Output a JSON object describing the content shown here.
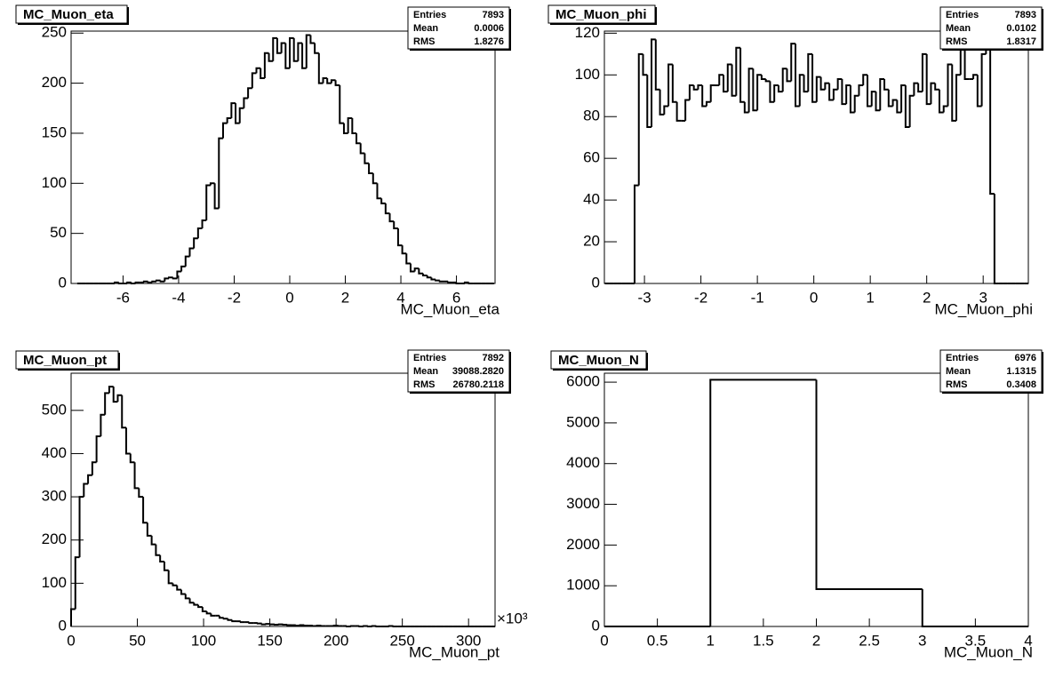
{
  "chart_data": [
    {
      "type": "histogram",
      "title": "MC_Muon_eta",
      "x_label": "MC_Muon_eta",
      "color": "#000000",
      "bins": [
        -7.65,
        -7.5,
        -7.35,
        -7.2,
        -7.05,
        -6.9,
        -6.75,
        -6.6,
        -6.45,
        -6.3,
        -6.15,
        -6,
        -5.85,
        -5.7,
        -5.55,
        -5.4,
        -5.25,
        -5.1,
        -4.95,
        -4.8,
        -4.65,
        -4.5,
        -4.35,
        -4.2,
        -4.05,
        -3.9,
        -3.75,
        -3.6,
        -3.45,
        -3.3,
        -3.15,
        -3,
        -2.85,
        -2.7,
        -2.55,
        -2.4,
        -2.25,
        -2.1,
        -1.95,
        -1.8,
        -1.65,
        -1.5,
        -1.35,
        -1.2,
        -1.05,
        -0.9,
        -0.75,
        -0.6,
        -0.45,
        -0.3,
        -0.15,
        0,
        0.15,
        0.3,
        0.45,
        0.6,
        0.75,
        0.9,
        1.05,
        1.2,
        1.35,
        1.5,
        1.65,
        1.8,
        1.95,
        2.1,
        2.25,
        2.4,
        2.55,
        2.7,
        2.85,
        3,
        3.15,
        3.3,
        3.45,
        3.6,
        3.75,
        3.9,
        4.05,
        4.2,
        4.35,
        4.5,
        4.65,
        4.8,
        4.95,
        5.1,
        5.25,
        5.4,
        5.55,
        5.7,
        5.85,
        6,
        6.15,
        6.3,
        6.45,
        6.6,
        6.75,
        6.9,
        7.05,
        7.2,
        7.35
      ],
      "values": [
        0,
        0,
        0,
        0,
        0,
        0,
        0,
        0,
        0,
        1,
        0,
        0,
        1,
        0,
        1,
        1,
        2,
        1,
        2,
        3,
        2,
        5,
        6,
        5,
        12,
        17,
        27,
        35,
        45,
        55,
        63,
        98,
        100,
        75,
        145,
        160,
        165,
        180,
        160,
        175,
        185,
        195,
        210,
        215,
        205,
        230,
        222,
        245,
        230,
        240,
        215,
        245,
        222,
        240,
        215,
        248,
        240,
        230,
        200,
        205,
        200,
        203,
        198,
        160,
        150,
        165,
        150,
        140,
        130,
        120,
        110,
        100,
        85,
        80,
        70,
        62,
        55,
        38,
        30,
        20,
        12,
        15,
        10,
        8,
        6,
        4,
        3,
        2,
        2,
        1,
        1,
        0,
        0,
        1,
        0,
        0,
        0,
        0,
        0,
        0
      ],
      "xlim": [
        -7.87,
        7.39
      ],
      "ylim": [
        0,
        252
      ],
      "xticks": [
        -6,
        -4,
        -2,
        0,
        2,
        4,
        6
      ],
      "yticks": [
        0,
        50,
        100,
        150,
        200,
        250
      ],
      "stats": [
        {
          "name": "Entries",
          "value": 7893
        },
        {
          "name": "Mean",
          "value": 0.0006
        },
        {
          "name": "RMS",
          "value": 1.8276
        }
      ]
    },
    {
      "type": "histogram",
      "title": "MC_Muon_phi",
      "x_label": "MC_Muon_phi",
      "color": "#000000",
      "bins": [
        -3.7,
        -3.625,
        -3.55,
        -3.475,
        -3.4,
        -3.325,
        -3.25,
        -3.175,
        -3.1,
        -3.025,
        -2.95,
        -2.875,
        -2.8,
        -2.725,
        -2.65,
        -2.575,
        -2.5,
        -2.425,
        -2.35,
        -2.275,
        -2.2,
        -2.125,
        -2.05,
        -1.975,
        -1.9,
        -1.825,
        -1.75,
        -1.675,
        -1.6,
        -1.525,
        -1.45,
        -1.375,
        -1.3,
        -1.225,
        -1.15,
        -1.075,
        -1,
        -0.925,
        -0.85,
        -0.775,
        -0.7,
        -0.625,
        -0.55,
        -0.475,
        -0.4,
        -0.325,
        -0.25,
        -0.175,
        -0.1,
        -0.025,
        0.05,
        0.125,
        0.2,
        0.275,
        0.35,
        0.425,
        0.5,
        0.575,
        0.65,
        0.725,
        0.8,
        0.875,
        0.95,
        1.025,
        1.1,
        1.175,
        1.25,
        1.325,
        1.4,
        1.475,
        1.55,
        1.625,
        1.7,
        1.775,
        1.85,
        1.925,
        2,
        2.075,
        2.15,
        2.225,
        2.3,
        2.375,
        2.45,
        2.525,
        2.6,
        2.675,
        2.75,
        2.825,
        2.9,
        2.975,
        3.05,
        3.125,
        3.2,
        3.275,
        3.35,
        3.425,
        3.5,
        3.575,
        3.65,
        3.725,
        3.8
      ],
      "values": [
        0,
        0,
        0,
        0,
        0,
        0,
        0,
        47,
        110,
        100,
        75,
        117,
        93,
        81,
        85,
        105,
        87,
        78,
        78,
        88,
        95,
        93,
        95,
        85,
        87,
        95,
        95,
        100,
        92,
        105,
        90,
        113,
        87,
        82,
        103,
        83,
        100,
        98,
        97,
        87,
        95,
        92,
        103,
        97,
        115,
        85,
        100,
        92,
        110,
        87,
        99,
        93,
        96,
        88,
        93,
        98,
        86,
        95,
        82,
        90,
        95,
        100,
        85,
        92,
        83,
        98,
        93,
        85,
        88,
        82,
        95,
        75,
        90,
        96,
        92,
        110,
        86,
        96,
        93,
        82,
        85,
        105,
        78,
        100,
        112,
        98,
        98,
        100,
        85,
        110,
        115,
        43,
        0,
        0,
        0,
        0,
        0,
        0,
        0,
        0
      ],
      "xlim": [
        -3.71,
        3.8
      ],
      "ylim": [
        0,
        121
      ],
      "xticks": [
        -3,
        -2,
        -1,
        0,
        1,
        2,
        3
      ],
      "yticks": [
        0,
        20,
        40,
        60,
        80,
        100,
        120
      ],
      "stats": [
        {
          "name": "Entries",
          "value": 7893
        },
        {
          "name": "Mean",
          "value": 0.0102
        },
        {
          "name": "RMS",
          "value": 1.8317
        }
      ]
    },
    {
      "type": "histogram",
      "title": "MC_Muon_pt",
      "x_label": "MC_Muon_pt",
      "x_exponent_label": "×10³",
      "color": "#000000",
      "bins": [
        0,
        3.2,
        6.4,
        9.6,
        12.8,
        16,
        19.2,
        22.4,
        25.6,
        28.8,
        32,
        35.2,
        38.4,
        41.6,
        44.8,
        48,
        51.2,
        54.4,
        57.6,
        60.8,
        64,
        67.2,
        70.4,
        73.6,
        76.8,
        80,
        83.2,
        86.4,
        89.6,
        92.8,
        96,
        99.2,
        102.4,
        105.6,
        108.8,
        112,
        115.2,
        118.4,
        121.6,
        124.8,
        128,
        131.2,
        134.4,
        137.6,
        140.8,
        144,
        147.2,
        150.4,
        153.6,
        156.8,
        160,
        163.2,
        166.4,
        169.6,
        172.8,
        176,
        179.2,
        182.4,
        185.6,
        188.8,
        192,
        195.2,
        198.4,
        201.6,
        204.8,
        208,
        211.2,
        214.4,
        217.6,
        220.8,
        224,
        227.2,
        230.4,
        233.6,
        236.8,
        240,
        243.2,
        246.4,
        249.6,
        252.8,
        256,
        259.2,
        262.4,
        265.6,
        268.8,
        272,
        275.2,
        278.4,
        281.6,
        284.8,
        288,
        291.2,
        294.4,
        297.6,
        300.8,
        304,
        307.2,
        310.4,
        313.6,
        316.8,
        320
      ],
      "values": [
        40,
        160,
        300,
        330,
        350,
        380,
        440,
        490,
        540,
        555,
        520,
        535,
        460,
        400,
        380,
        320,
        300,
        240,
        210,
        190,
        165,
        150,
        130,
        100,
        95,
        85,
        75,
        65,
        55,
        50,
        45,
        35,
        30,
        25,
        25,
        20,
        18,
        15,
        12,
        12,
        10,
        10,
        8,
        8,
        7,
        5,
        6,
        5,
        4,
        5,
        4,
        3,
        3,
        2,
        3,
        2,
        2,
        1,
        2,
        1,
        1,
        1,
        2,
        1,
        1,
        0,
        1,
        1,
        0,
        1,
        0,
        1,
        0,
        0,
        0,
        1,
        0,
        0,
        0,
        0,
        0,
        0,
        0,
        0,
        0,
        0,
        0,
        0,
        0,
        0,
        0,
        0,
        0,
        0,
        0,
        0,
        0,
        0,
        0,
        0
      ],
      "xlim": [
        0,
        320
      ],
      "ylim": [
        0,
        586
      ],
      "xticks": [
        0,
        50,
        100,
        150,
        200,
        250,
        300
      ],
      "yticks": [
        0,
        100,
        200,
        300,
        400,
        500
      ],
      "stats": [
        {
          "name": "Entries",
          "value": 7892
        },
        {
          "name": "Mean",
          "value": {
            "value": 39088.282,
            "label": "39088.2820"
          }
        },
        {
          "name": "RMS",
          "value": 26780.2118
        }
      ]
    },
    {
      "type": "histogram",
      "title": "MC_Muon_N",
      "x_label": "MC_Muon_N",
      "color": "#000000",
      "bins": [
        0,
        1,
        2,
        3,
        4
      ],
      "values": [
        0,
        6060,
        916,
        0
      ],
      "xlim": [
        0,
        4
      ],
      "ylim": [
        0,
        6220
      ],
      "xticks": [
        0,
        0.5,
        1,
        1.5,
        2,
        2.5,
        3,
        3.5,
        4
      ],
      "yticks": [
        0,
        1000,
        2000,
        3000,
        4000,
        5000,
        6000
      ],
      "stats": [
        {
          "name": "Entries",
          "value": 6976
        },
        {
          "name": "Mean",
          "value": 1.1315
        },
        {
          "name": "RMS",
          "value": 0.3408
        }
      ]
    }
  ]
}
